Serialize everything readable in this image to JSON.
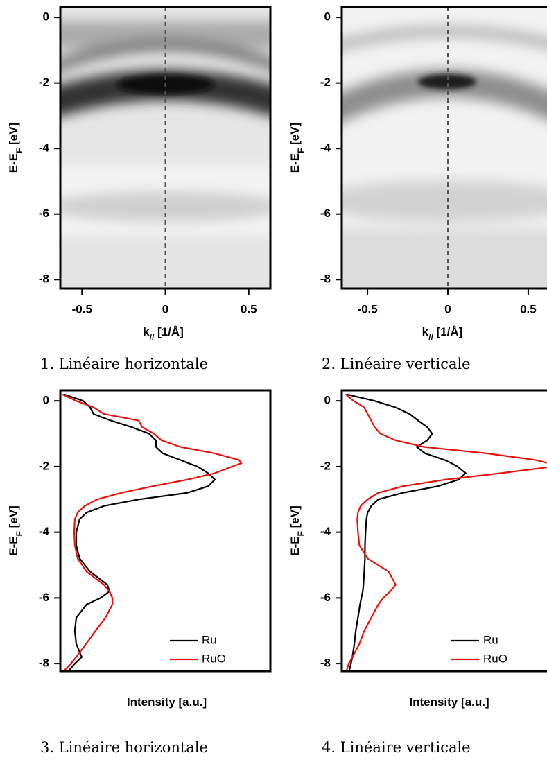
{
  "chart_data": [
    {
      "type": "image",
      "xlim": [
        -0.63,
        0.63
      ],
      "ylim": [
        -8.27,
        0.32
      ],
      "xticks": [
        -0.5,
        0,
        0.5
      ],
      "yticks": [
        0,
        -2,
        -4,
        -6,
        -8
      ],
      "vline": 0,
      "xlabel": [
        "k",
        "//",
        " [1/Å]"
      ],
      "ylabel": [
        "E-E",
        "F",
        " [eV]"
      ],
      "caption": "1. Linéaire horizontale"
    },
    {
      "type": "image",
      "xlim": [
        -0.66,
        0.66
      ],
      "ylim": [
        -8.27,
        0.32
      ],
      "xticks": [
        -0.5,
        0,
        0.5
      ],
      "yticks": [
        0,
        -2,
        -4,
        -6,
        -8
      ],
      "vline": 0,
      "xlabel": [
        "k",
        "//",
        " [1/Å]"
      ],
      "ylabel": [
        "E-E",
        "F",
        " [eV]"
      ],
      "caption": "2. Linéaire verticale"
    },
    {
      "type": "line",
      "xlim": [
        0,
        100
      ],
      "ylim": [
        -8.23,
        0.32
      ],
      "yticks": [
        0,
        -2,
        -4,
        -6,
        -8
      ],
      "legend": "lower right",
      "xlabel": "Intensity [a.u.]",
      "ylabel": [
        "E-E",
        "F",
        " [eV]"
      ],
      "caption": "3. Linéaire horizontale",
      "y": [
        0.2,
        0,
        -0.2,
        -0.4,
        -0.6,
        -0.8,
        -1,
        -1.2,
        -1.4,
        -1.6,
        -1.8,
        -1.9,
        -2,
        -2.2,
        -2.4,
        -2.6,
        -2.8,
        -3,
        -3.2,
        -3.4,
        -3.6,
        -4,
        -4.4,
        -4.8,
        -5.2,
        -5.6,
        -5.8,
        -6,
        -6.2,
        -6.6,
        -7,
        -7.4,
        -7.8,
        -8,
        -8.2
      ],
      "series": [
        {
          "name": "Ru",
          "color": "#000000",
          "values": [
            1.7,
            10.9,
            14.2,
            15.8,
            24.1,
            34,
            42.2,
            45.5,
            45.5,
            48.8,
            57.1,
            61.1,
            65.3,
            70.3,
            73.6,
            70.3,
            60.4,
            37.3,
            20.8,
            12.5,
            9.2,
            7.6,
            7.6,
            9.2,
            14.2,
            22.4,
            23.4,
            19.1,
            12.5,
            7.6,
            6.9,
            7.6,
            10.2,
            6.9,
            4.3
          ]
        },
        {
          "name": "RuO",
          "color": "#e8120c",
          "values": [
            1,
            7.6,
            15.8,
            20.8,
            37.3,
            39,
            44.6,
            48.2,
            57.1,
            73.6,
            85.1,
            86.1,
            81.8,
            73.6,
            60.4,
            43.9,
            29,
            17.5,
            11.6,
            8.3,
            6.9,
            6.6,
            6.9,
            8.3,
            12.5,
            20.8,
            23.4,
            24.8,
            24.8,
            21.5,
            16.8,
            12.2,
            7.6,
            5,
            2
          ]
        }
      ]
    },
    {
      "type": "line",
      "xlim": [
        0,
        100
      ],
      "ylim": [
        -8.23,
        0.32
      ],
      "yticks": [
        0,
        -2,
        -4,
        -6,
        -8
      ],
      "legend": "lower right",
      "xlabel": "Intensity [a.u.]",
      "ylabel": [
        "E-E",
        "F",
        " [eV]"
      ],
      "caption": "4. Linéaire verticale",
      "y": [
        0.2,
        0,
        -0.2,
        -0.4,
        -0.6,
        -0.8,
        -1,
        -1.2,
        -1.4,
        -1.6,
        -1.8,
        -1.9,
        -2,
        -2.2,
        -2.4,
        -2.6,
        -2.8,
        -3,
        -3.2,
        -3.4,
        -3.6,
        -4,
        -4.4,
        -4.8,
        -5.2,
        -5.6,
        -5.8,
        -6,
        -6.2,
        -6.6,
        -7,
        -7.4,
        -7.8,
        -8,
        -8.2
      ],
      "series": [
        {
          "name": "Ru",
          "color": "#000000",
          "values": [
            2.3,
            15.5,
            25.4,
            32,
            36,
            40.3,
            42.6,
            40.3,
            35.3,
            39.3,
            48.5,
            51.8,
            54.5,
            58.4,
            55.1,
            45.2,
            28.7,
            17.2,
            13.9,
            12.2,
            11.6,
            11.2,
            10.9,
            10.9,
            10.6,
            10.2,
            9.9,
            9.2,
            8.6,
            7.6,
            6.6,
            5.9,
            5,
            4.3,
            3.6
          ]
        },
        {
          "name": "RuO",
          "color": "#e8120c",
          "values": [
            1.7,
            5.6,
            10.6,
            12.2,
            13.9,
            15.5,
            18.2,
            25.4,
            38.6,
            68.3,
            91.4,
            97.7,
            99.7,
            75.2,
            48.8,
            28.7,
            17.2,
            12.2,
            8.9,
            7.6,
            7.3,
            7.6,
            8.3,
            12.2,
            22.1,
            25.4,
            22.8,
            19.5,
            17.2,
            13.9,
            10.6,
            8.3,
            5,
            3.3,
            2.3
          ]
        }
      ]
    }
  ]
}
